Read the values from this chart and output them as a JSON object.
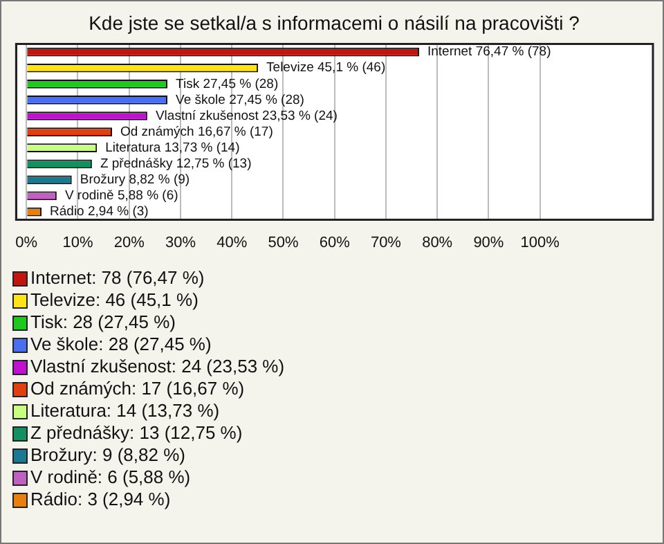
{
  "chart_data": {
    "type": "bar",
    "orientation": "horizontal",
    "title": "Kde jste se setkal/a s informacemi o násilí na pracovišti ?",
    "categories": [
      null,
      null,
      null,
      null,
      null,
      null,
      null,
      null,
      null,
      null,
      null
    ],
    "values": [
      76.47,
      45.1,
      27.45,
      27.45,
      23.53,
      16.67,
      13.73,
      12.75,
      8.82,
      5.88,
      2.94
    ],
    "colors": [
      "#c0160f",
      "#ffe41a",
      "#1ec81e",
      "#4a6ef0",
      "#c010d0",
      "#e04010",
      "#c8ff80",
      "#129060",
      "#1a7890",
      "#c060c0",
      "#e88010"
    ],
    "value_labels": [
      "Internet 76,47 % (78)",
      "Televize 45,1 % (46)",
      "Tisk 27,45 % (28)",
      "Ve škole 27,45 % (28)",
      "Vlastní zkušenost 23,53 % (24)",
      "Od známých 16,67 % (17)",
      "Literatura 13,73 % (14)",
      "Z přednášky 12,75 % (13)",
      "Brožury 8,82 % (9)",
      "V rodině 5,88 % (6)",
      "Rádio 2,94 % (3)"
    ],
    "xlim": [
      -2,
      122
    ],
    "xticks": [
      {
        "value": 0,
        "label": "0%"
      },
      {
        "value": 10,
        "label": "10%"
      },
      {
        "value": 20,
        "label": "20%"
      },
      {
        "value": 30,
        "label": "30%"
      },
      {
        "value": 40,
        "label": "40%"
      },
      {
        "value": 50,
        "label": "50%"
      },
      {
        "value": 60,
        "label": "60%"
      },
      {
        "value": 70,
        "label": "70%"
      },
      {
        "value": 80,
        "label": "80%"
      },
      {
        "value": 90,
        "label": "90%"
      },
      {
        "value": 100,
        "label": "100%"
      }
    ],
    "grid": "x",
    "annotations": [
      "Internet: 78 (76,47 %)",
      "Televize: 46 (45,1 %)",
      "Tisk: 28 (27,45 %)",
      "Ve škole: 28 (27,45 %)",
      "Vlastní zkušenost: 24 (23,53 %)",
      "Od známých: 17 (16,67 %)",
      "Literatura: 14 (13,73 %)",
      "Z přednášky: 13 (12,75 %)",
      "Brožury: 9 (8,82 %)",
      "V rodině: 6 (5,88 %)",
      "Rádio: 3 (2,94 %)"
    ]
  }
}
